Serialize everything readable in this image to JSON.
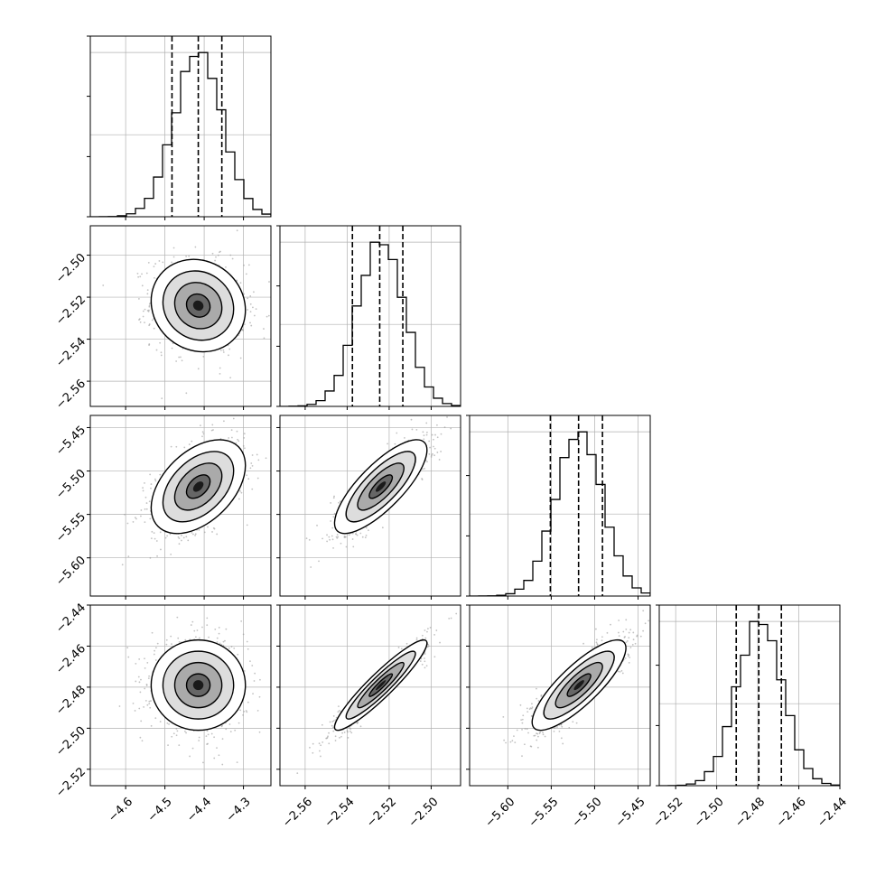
{
  "chart_data": {
    "type": "corner",
    "grid": true,
    "quantiles": [
      0.16,
      0.5,
      0.84
    ],
    "parameters": [
      {
        "range": [
          -4.69,
          -4.23
        ],
        "ticks": [
          "−4.6",
          "−4.5",
          "−4.4",
          "−4.3"
        ],
        "tick_values": [
          -4.6,
          -4.5,
          -4.4,
          -4.3
        ],
        "mean": -4.415,
        "sigma": 0.06,
        "quantile_values": [
          -4.482,
          -4.415,
          -4.355
        ]
      },
      {
        "range": [
          -2.572,
          -2.486
        ],
        "ticks": [
          "−2.56",
          "−2.54",
          "−2.52",
          "−2.50"
        ],
        "tick_values": [
          -2.56,
          -2.54,
          -2.52,
          -2.5
        ],
        "mean": -2.524,
        "sigma": 0.011,
        "quantile_values": [
          -2.5375,
          -2.5245,
          -2.5135
        ]
      },
      {
        "range": [
          -5.644,
          -5.436
        ],
        "ticks": [
          "−5.60",
          "−5.55",
          "−5.50",
          "−5.45"
        ],
        "tick_values": [
          -5.6,
          -5.55,
          -5.5,
          -5.45
        ],
        "mean": -5.518,
        "sigma": 0.027,
        "quantile_values": [
          -5.551,
          -5.5185,
          -5.491
        ]
      },
      {
        "range": [
          -2.528,
          -2.44
        ],
        "ticks": [
          "−2.52",
          "−2.50",
          "−2.48",
          "−2.46",
          "−2.44"
        ],
        "tick_values": [
          -2.52,
          -2.5,
          -2.48,
          -2.46,
          -2.44
        ],
        "mean": -2.479,
        "sigma": 0.011,
        "quantile_values": [
          -2.4905,
          -2.4795,
          -2.4685
        ]
      }
    ],
    "correlations": {
      "1-0": -0.1,
      "2-0": 0.45,
      "2-1": 0.78,
      "3-0": 0.0,
      "3-1": 0.93,
      "3-2": 0.82
    },
    "colors": {
      "density": "#000000",
      "points": "#9a9a9a",
      "grid": "#b0b0b0"
    }
  }
}
